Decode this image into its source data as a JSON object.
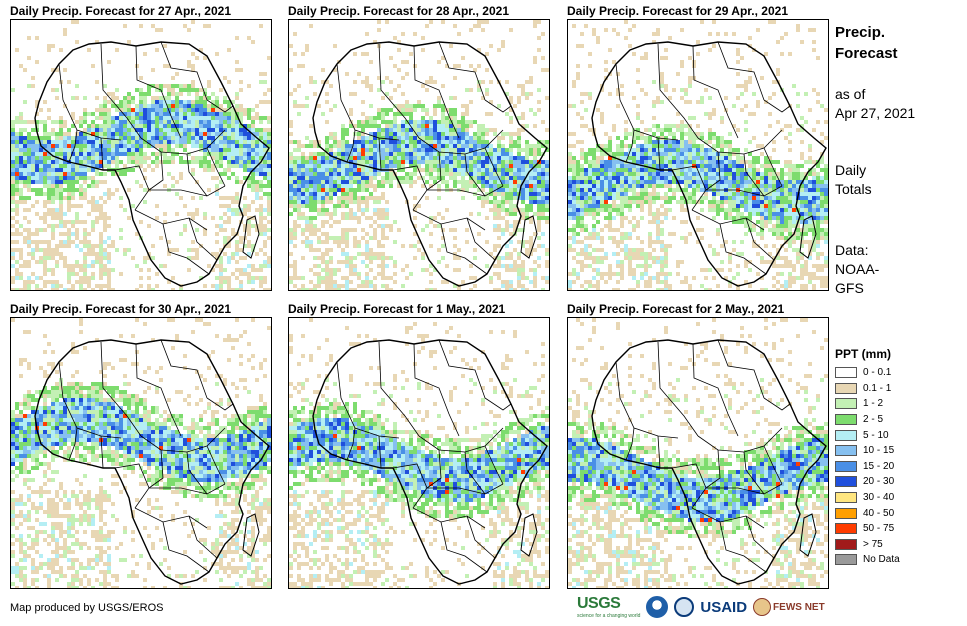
{
  "panels": [
    {
      "title": "Daily Precip. Forecast for 27 Apr., 2021"
    },
    {
      "title": "Daily Precip. Forecast for 28 Apr., 2021"
    },
    {
      "title": "Daily Precip. Forecast for 29 Apr., 2021"
    },
    {
      "title": "Daily Precip. Forecast for 30 Apr., 2021"
    },
    {
      "title": "Daily Precip. Forecast for 1 May., 2021"
    },
    {
      "title": "Daily Precip. Forecast for 2 May., 2021"
    }
  ],
  "sidebar": {
    "title_line1": "Precip.",
    "title_line2": "Forecast",
    "asof_line1": "as of",
    "asof_line2": "Apr 27, 2021",
    "totals_line1": "Daily",
    "totals_line2": "Totals",
    "data_line1": "Data:",
    "data_line2": "NOAA-",
    "data_line3": "GFS"
  },
  "legend": {
    "title": "PPT (mm)",
    "items": [
      {
        "label": "0 - 0.1",
        "color": "#ffffff"
      },
      {
        "label": "0.1 - 1",
        "color": "#e8d7b4"
      },
      {
        "label": "1 - 2",
        "color": "#c3f0b4"
      },
      {
        "label": "2 - 5",
        "color": "#7ddc6e"
      },
      {
        "label": "5 - 10",
        "color": "#b4eef4"
      },
      {
        "label": "10 - 15",
        "color": "#86c0f0"
      },
      {
        "label": "15 - 20",
        "color": "#4a8fe6"
      },
      {
        "label": "20 - 30",
        "color": "#1f4fdc"
      },
      {
        "label": "30 - 40",
        "color": "#ffe680"
      },
      {
        "label": "40 - 50",
        "color": "#ff9f00"
      },
      {
        "label": "50 - 75",
        "color": "#ff3c00"
      },
      {
        "label": "> 75",
        "color": "#a11a1a"
      },
      {
        "label": "No Data",
        "color": "#9a9a9a"
      }
    ]
  },
  "credit": "Map produced by USGS/EROS",
  "logos": {
    "usgs": "USGS",
    "usgs_tagline": "science for a changing world",
    "usaid": "USAID",
    "fews": "FEWS NET"
  }
}
